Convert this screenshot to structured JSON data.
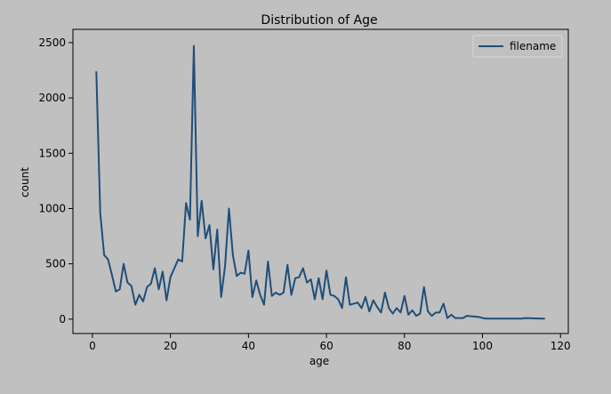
{
  "chart_data": {
    "type": "line",
    "title": "Distribution of Age",
    "xlabel": "age",
    "ylabel": "count",
    "xlim": [
      -5,
      122
    ],
    "ylim": [
      -130,
      2620
    ],
    "xticks": [
      0,
      20,
      40,
      60,
      80,
      100,
      120
    ],
    "yticks": [
      0,
      500,
      1000,
      1500,
      2000,
      2500
    ],
    "grid": false,
    "legend_position": "top-right",
    "colors": {
      "line": "#1f4e79",
      "figure_bg": "#c0c0c0",
      "axes_bg": "#c0c0c0"
    },
    "series": [
      {
        "name": "filename",
        "x": [
          1,
          2,
          3,
          4,
          5,
          6,
          7,
          8,
          9,
          10,
          11,
          12,
          13,
          14,
          15,
          16,
          17,
          18,
          19,
          20,
          21,
          22,
          23,
          24,
          25,
          26,
          27,
          28,
          29,
          30,
          31,
          32,
          33,
          34,
          35,
          36,
          37,
          38,
          39,
          40,
          41,
          42,
          43,
          44,
          45,
          46,
          47,
          48,
          49,
          50,
          51,
          52,
          53,
          54,
          55,
          56,
          57,
          58,
          59,
          60,
          61,
          62,
          63,
          64,
          65,
          66,
          67,
          68,
          69,
          70,
          71,
          72,
          73,
          74,
          75,
          76,
          77,
          78,
          79,
          80,
          81,
          82,
          83,
          84,
          85,
          86,
          87,
          88,
          89,
          90,
          91,
          92,
          93,
          95,
          96,
          99,
          100,
          101,
          103,
          105,
          110,
          111,
          115,
          116
        ],
        "values": [
          2240,
          960,
          580,
          540,
          400,
          250,
          270,
          500,
          330,
          300,
          130,
          220,
          160,
          290,
          320,
          460,
          270,
          430,
          170,
          380,
          460,
          540,
          520,
          1050,
          900,
          2470,
          750,
          1070,
          730,
          850,
          450,
          810,
          200,
          480,
          1000,
          580,
          390,
          420,
          410,
          620,
          200,
          350,
          220,
          130,
          520,
          210,
          240,
          220,
          240,
          490,
          220,
          370,
          380,
          460,
          330,
          360,
          180,
          370,
          180,
          440,
          220,
          210,
          180,
          100,
          380,
          130,
          140,
          150,
          100,
          200,
          70,
          170,
          110,
          60,
          240,
          100,
          50,
          100,
          60,
          210,
          40,
          80,
          30,
          50,
          290,
          70,
          30,
          60,
          60,
          140,
          10,
          40,
          10,
          10,
          30,
          20,
          10,
          5,
          5,
          5,
          5,
          10,
          5,
          5
        ]
      }
    ]
  }
}
